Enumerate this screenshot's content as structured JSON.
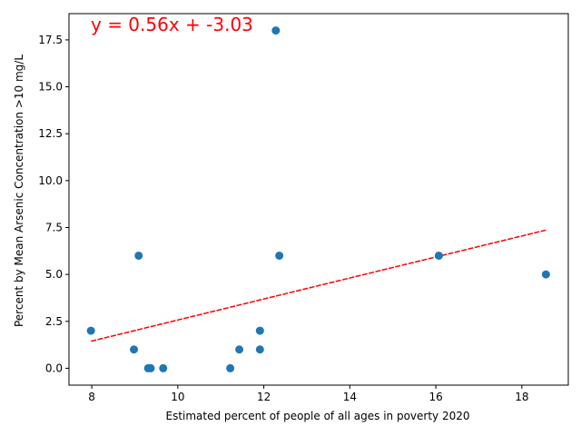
{
  "chart_data": {
    "type": "scatter",
    "xlabel": "Estimated percent of people of all ages in poverty 2020",
    "ylabel": "Percent by Mean Arsenic Concentration >10 mg/L",
    "xlim": [
      7.47,
      19.08
    ],
    "ylim": [
      -0.9,
      18.9
    ],
    "xticks": [
      8,
      10,
      12,
      14,
      16,
      18
    ],
    "yticks": [
      0.0,
      2.5,
      5.0,
      7.5,
      10.0,
      12.5,
      15.0,
      17.5
    ],
    "xtick_labels": [
      "8",
      "10",
      "12",
      "14",
      "16",
      "18"
    ],
    "ytick_labels": [
      "0.0",
      "2.5",
      "5.0",
      "7.5",
      "10.0",
      "12.5",
      "15.0",
      "17.5"
    ],
    "grid": false,
    "points": [
      {
        "x": 7.98,
        "y": 2
      },
      {
        "x": 8.98,
        "y": 1
      },
      {
        "x": 9.09,
        "y": 6
      },
      {
        "x": 9.31,
        "y": 0
      },
      {
        "x": 9.37,
        "y": 0
      },
      {
        "x": 9.66,
        "y": 0
      },
      {
        "x": 11.22,
        "y": 0
      },
      {
        "x": 11.43,
        "y": 1
      },
      {
        "x": 11.91,
        "y": 2
      },
      {
        "x": 11.91,
        "y": 1
      },
      {
        "x": 12.28,
        "y": 18
      },
      {
        "x": 12.36,
        "y": 6
      },
      {
        "x": 16.07,
        "y": 6
      },
      {
        "x": 18.56,
        "y": 5
      }
    ],
    "trendline": {
      "slope": 0.56,
      "intercept": -3.03,
      "x_range": [
        7.98,
        18.56
      ]
    },
    "annotation": "y = 0.56x + -3.03",
    "colors": {
      "points": "#1f77b4",
      "trendline": "#ff0000",
      "annotation": "#ff0000",
      "axes": "#000000"
    }
  }
}
